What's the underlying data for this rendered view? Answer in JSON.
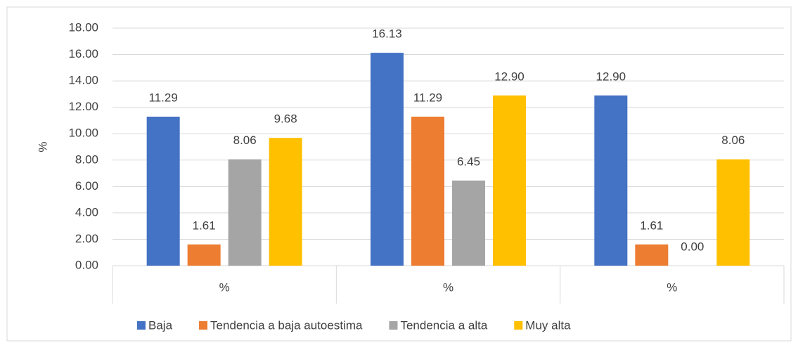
{
  "chart_data": {
    "type": "bar",
    "y_label": "%",
    "categories": [
      "%",
      "%",
      "%"
    ],
    "series": [
      {
        "name": "Baja",
        "color": "#4472c4",
        "values": [
          11.29,
          16.13,
          12.9
        ],
        "value_labels": [
          "11.29",
          "16.13",
          "12.90"
        ]
      },
      {
        "name": "Tendencia a baja autoestima",
        "color": "#ed7d31",
        "values": [
          1.61,
          11.29,
          1.61
        ],
        "value_labels": [
          "1.61",
          "11.29",
          "1.61"
        ]
      },
      {
        "name": "Tendencia a alta",
        "color": "#a5a5a5",
        "values": [
          8.06,
          6.45,
          0
        ],
        "value_labels": [
          "8.06",
          "6.45",
          "0.00"
        ]
      },
      {
        "name": "Muy alta",
        "color": "#ffc000",
        "values": [
          9.68,
          12.9,
          8.06
        ],
        "value_labels": [
          "9.68",
          "12.90",
          "8.06"
        ]
      }
    ],
    "ylim": [
      0,
      18
    ],
    "yticks": [
      {
        "value": 0,
        "label": "0.00"
      },
      {
        "value": 2,
        "label": "2.00"
      },
      {
        "value": 4,
        "label": "4.00"
      },
      {
        "value": 6,
        "label": "6.00"
      },
      {
        "value": 8,
        "label": "8.00"
      },
      {
        "value": 10,
        "label": "10.00"
      },
      {
        "value": 12,
        "label": "12.00"
      },
      {
        "value": 14,
        "label": "14.00"
      },
      {
        "value": 16,
        "label": "16.00"
      },
      {
        "value": 18,
        "label": "18.00"
      }
    ],
    "grid": true,
    "legend": "bottom"
  }
}
